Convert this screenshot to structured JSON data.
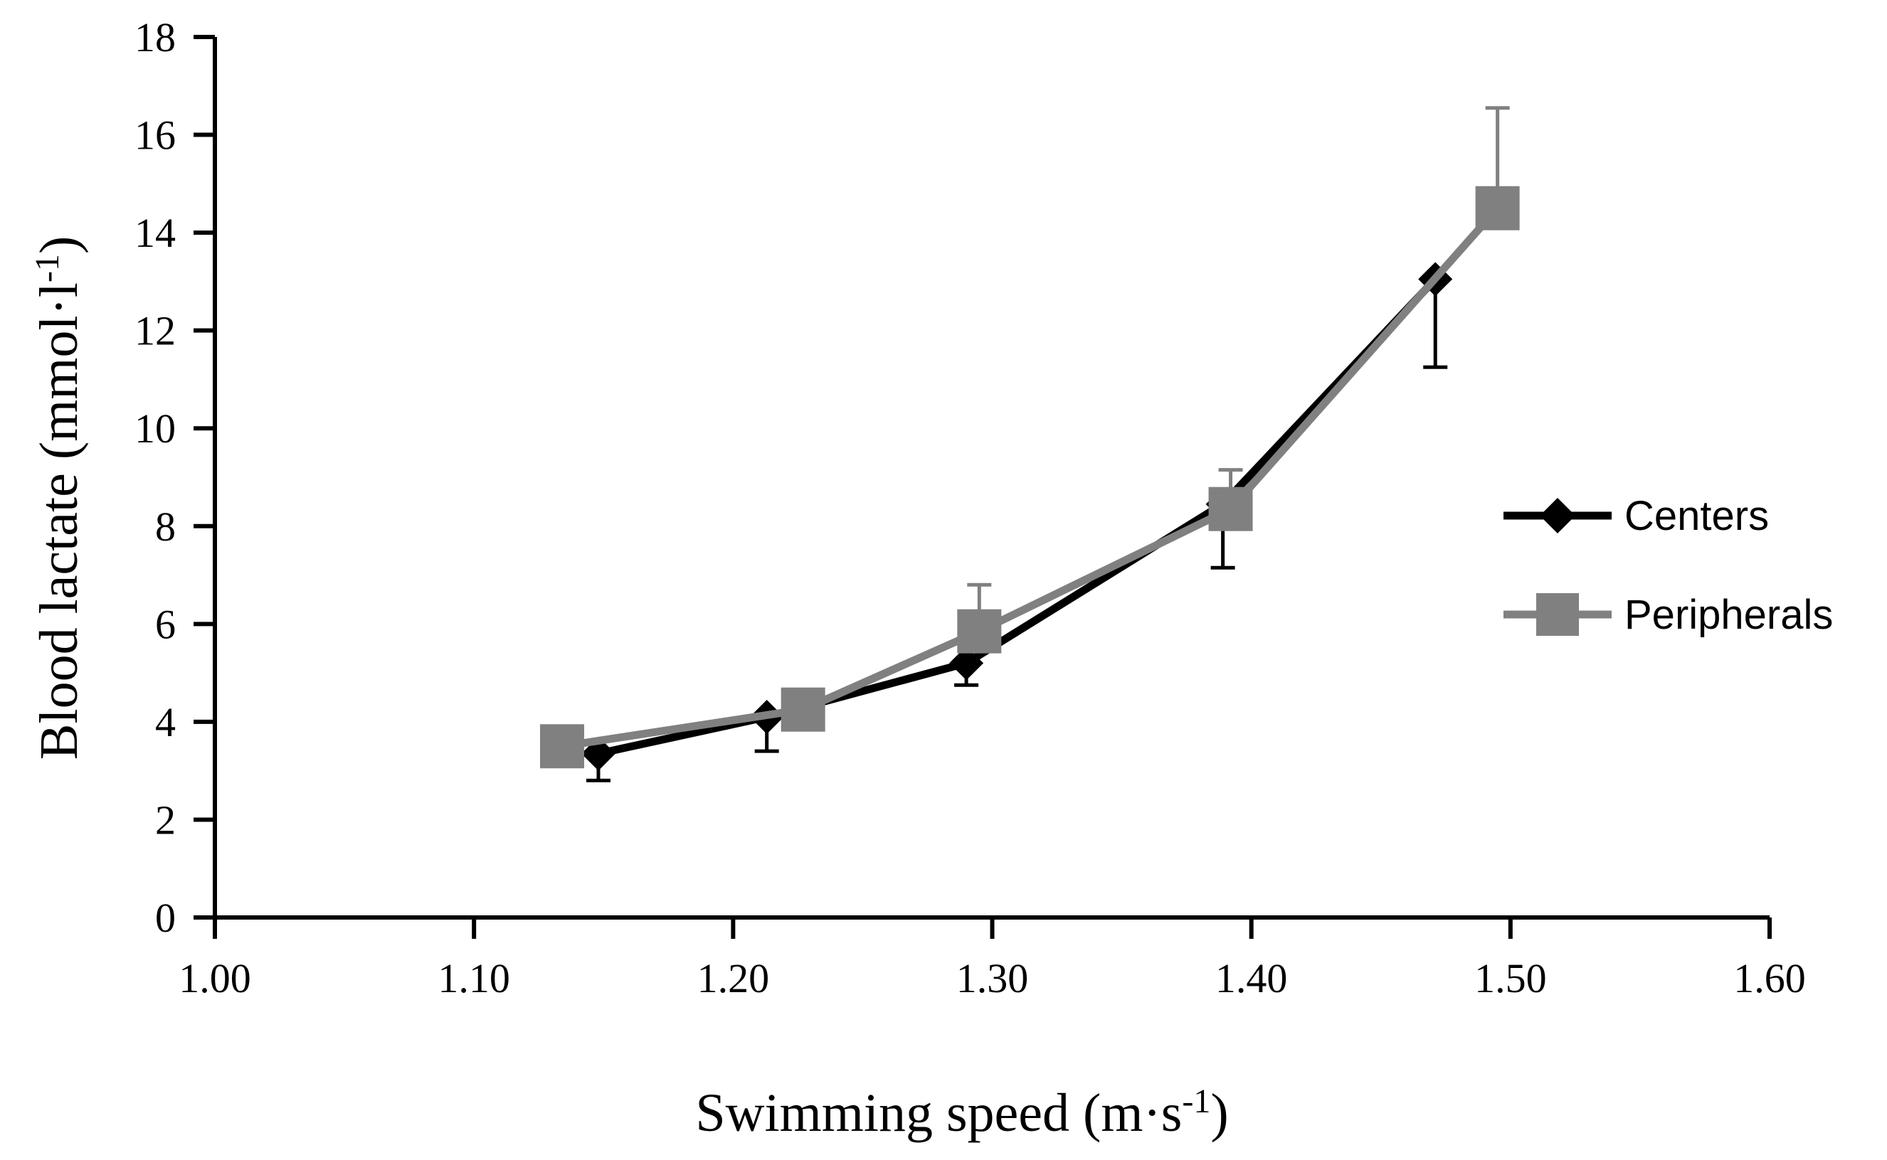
{
  "chart_data": {
    "type": "line",
    "title": "",
    "xlabel": {
      "main": "Swimming speed (m·s",
      "sup": "-1",
      "tail": ")"
    },
    "ylabel": {
      "main": "Blood lactate (mmol·l",
      "sup": "-1",
      "tail": ")"
    },
    "xlim": [
      1.0,
      1.6
    ],
    "ylim": [
      0,
      18
    ],
    "x_ticks": [
      "1.00",
      "1.10",
      "1.20",
      "1.30",
      "1.40",
      "1.50",
      "1.60"
    ],
    "y_ticks": [
      "0",
      "2",
      "4",
      "6",
      "8",
      "10",
      "12",
      "14",
      "16",
      "18"
    ],
    "grid": false,
    "legend_position": "right",
    "series": [
      {
        "name": "Centers",
        "color": "#000000",
        "marker": "diamond",
        "x": [
          1.148,
          1.213,
          1.29,
          1.389,
          1.471
        ],
        "y": [
          3.35,
          4.1,
          5.2,
          8.45,
          13.05
        ],
        "err_minus": [
          0.55,
          0.7,
          0.45,
          1.3,
          1.8
        ],
        "err_plus": [
          0,
          0,
          0,
          0,
          0
        ]
      },
      {
        "name": "Peripherals",
        "color": "#808080",
        "marker": "square",
        "x": [
          1.134,
          1.227,
          1.295,
          1.392,
          1.495
        ],
        "y": [
          3.5,
          4.25,
          5.85,
          8.35,
          14.5
        ],
        "err_minus": [
          0,
          0,
          0,
          0,
          0
        ],
        "err_plus": [
          0,
          0,
          0.95,
          0.8,
          2.05
        ]
      }
    ]
  }
}
